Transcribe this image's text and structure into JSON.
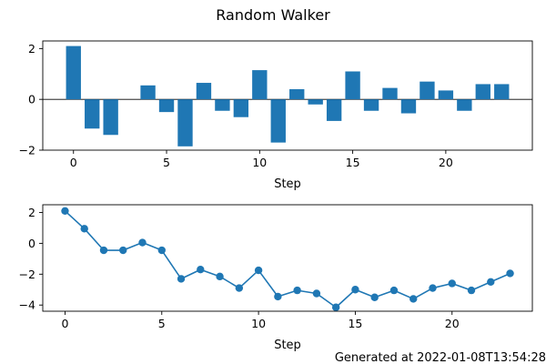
{
  "figure": {
    "title": "Random Walker",
    "footer": "Generated at 2022-01-08T13:54:28"
  },
  "colors": {
    "series": "#1f77b4",
    "axis": "#000000",
    "background": "#ffffff"
  },
  "chart_data": [
    {
      "type": "bar",
      "xlabel": "Step",
      "ylabel": "",
      "xlim": [
        -1.65,
        24.65
      ],
      "ylim": [
        -2.0,
        2.3
      ],
      "xticks": [
        0,
        5,
        10,
        15,
        20
      ],
      "yticks": [
        -2,
        0,
        2
      ],
      "zero_line": true,
      "grid": false,
      "x": [
        0,
        1,
        2,
        3,
        4,
        5,
        6,
        7,
        8,
        9,
        10,
        11,
        12,
        13,
        14,
        15,
        16,
        17,
        18,
        19,
        20,
        21,
        22,
        23
      ],
      "values": [
        2.1,
        -1.15,
        -1.4,
        0.0,
        0.55,
        -0.5,
        -1.85,
        0.65,
        -0.45,
        -0.7,
        1.15,
        -1.7,
        0.4,
        -0.2,
        -0.85,
        1.1,
        -0.45,
        0.45,
        -0.55,
        0.7,
        0.35,
        -0.45,
        0.6,
        0.6
      ]
    },
    {
      "type": "line",
      "markers": true,
      "xlabel": "Step",
      "ylabel": "",
      "xlim": [
        -1.15,
        24.15
      ],
      "ylim": [
        -4.4,
        2.5
      ],
      "xticks": [
        0,
        5,
        10,
        15,
        20
      ],
      "yticks": [
        -4,
        -2,
        0,
        2
      ],
      "grid": false,
      "x": [
        0,
        1,
        2,
        3,
        4,
        5,
        6,
        7,
        8,
        9,
        10,
        11,
        12,
        13,
        14,
        15,
        16,
        17,
        18,
        19,
        20,
        21,
        22,
        23
      ],
      "values": [
        2.1,
        0.95,
        -0.45,
        -0.45,
        0.05,
        -0.45,
        -2.3,
        -1.7,
        -2.15,
        -2.9,
        -1.75,
        -3.45,
        -3.05,
        -3.25,
        -4.15,
        -3.0,
        -3.5,
        -3.05,
        -3.6,
        -2.9,
        -2.6,
        -3.05,
        -2.5,
        -1.95
      ]
    }
  ]
}
